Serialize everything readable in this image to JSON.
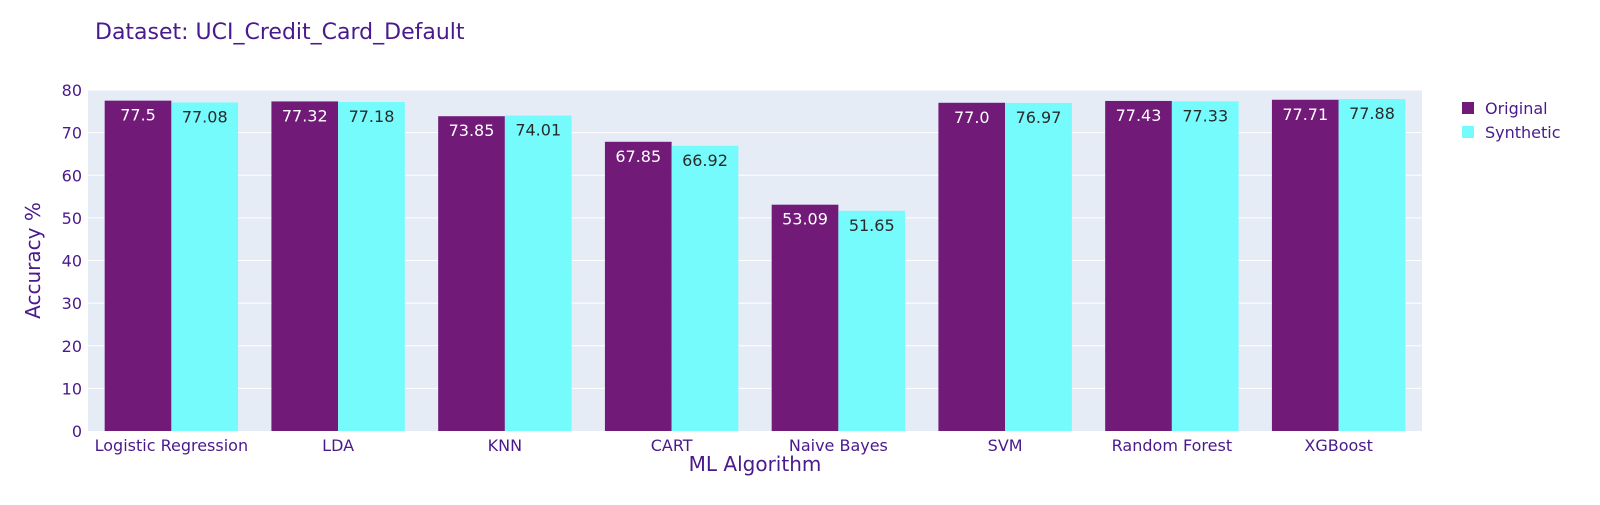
{
  "chart_data": {
    "type": "bar",
    "title": "Dataset: UCI_Credit_Card_Default",
    "xlabel": "ML Algorithm",
    "ylabel": "Accuracy %",
    "categories": [
      "Logistic Regression",
      "LDA",
      "KNN",
      "CART",
      "Naive Bayes",
      "SVM",
      "Random Forest",
      "XGBoost"
    ],
    "series": [
      {
        "name": "Original",
        "color": "#711a78",
        "values": [
          77.5,
          77.32,
          73.85,
          67.85,
          53.09,
          77.0,
          77.43,
          77.71
        ],
        "labels": [
          "77.5",
          "77.32",
          "73.85",
          "67.85",
          "53.09",
          "77.0",
          "77.43",
          "77.71"
        ]
      },
      {
        "name": "Synthetic",
        "color": "#76fbfd",
        "values": [
          77.08,
          77.18,
          74.01,
          66.92,
          51.65,
          76.97,
          77.33,
          77.88
        ],
        "labels": [
          "77.08",
          "77.18",
          "74.01",
          "66.92",
          "51.65",
          "76.97",
          "77.33",
          "77.88"
        ]
      }
    ],
    "ylim": [
      0,
      80
    ],
    "yticks": [
      0,
      10,
      20,
      30,
      40,
      50,
      60,
      70,
      80
    ],
    "grid": true,
    "legend_position": "top-right",
    "plot_background": "#e5ecf6",
    "text_color": "#4a1a8c"
  }
}
